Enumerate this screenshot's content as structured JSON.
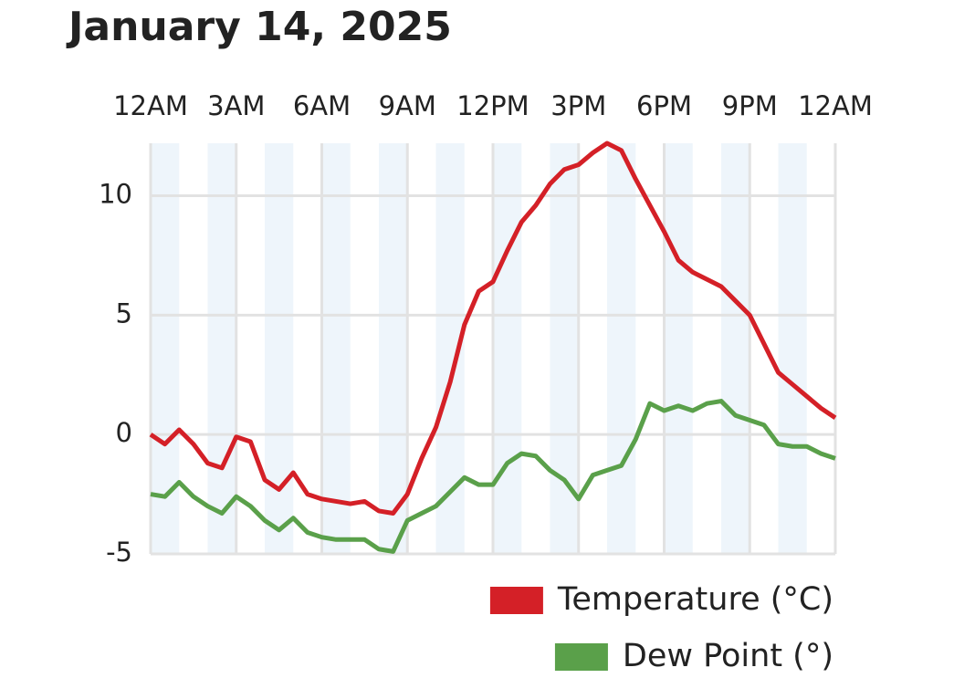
{
  "chart_data": {
    "type": "line",
    "title": "January 14, 2025",
    "x": [
      0,
      0.5,
      1,
      1.5,
      2,
      2.5,
      3,
      3.5,
      4,
      4.5,
      5,
      5.5,
      6,
      6.5,
      7,
      7.5,
      8,
      8.5,
      9,
      9.5,
      10,
      10.5,
      11,
      11.5,
      12,
      12.5,
      13,
      13.5,
      14,
      14.5,
      15,
      15.5,
      16,
      16.5,
      17,
      17.5,
      18,
      18.5,
      19,
      19.5,
      20,
      20.5,
      21,
      21.5,
      22,
      22.5,
      23,
      23.5,
      24
    ],
    "series": [
      {
        "name": "Temperature (°C)",
        "color": "#d42027",
        "values": [
          0,
          -0.4,
          0.2,
          -0.4,
          -1.2,
          -1.4,
          -0.1,
          -0.3,
          -1.9,
          -2.3,
          -1.6,
          -2.5,
          -2.7,
          -2.8,
          -2.9,
          -2.8,
          -3.2,
          -3.3,
          -2.5,
          -1.0,
          0.3,
          2.2,
          4.6,
          6.0,
          6.4,
          7.7,
          8.9,
          9.6,
          10.5,
          11.1,
          11.3,
          11.8,
          12.2,
          11.9,
          10.7,
          9.6,
          8.5,
          7.3,
          6.8,
          6.5,
          6.2,
          5.6,
          5.0,
          3.8,
          2.6,
          2.1,
          1.6,
          1.1,
          0.7
        ]
      },
      {
        "name": "Dew Point (°)",
        "color": "#5aa04a",
        "values": [
          -2.5,
          -2.6,
          -2.0,
          -2.6,
          -3.0,
          -3.3,
          -2.6,
          -3.0,
          -3.6,
          -4.0,
          -3.5,
          -4.1,
          -4.3,
          -4.4,
          -4.4,
          -4.4,
          -4.8,
          -4.9,
          -3.6,
          -3.3,
          -3.0,
          -2.4,
          -1.8,
          -2.1,
          -2.1,
          -1.2,
          -0.8,
          -0.9,
          -1.5,
          -1.9,
          -2.7,
          -1.7,
          -1.5,
          -1.3,
          -0.2,
          1.3,
          1.0,
          1.2,
          1.0,
          1.3,
          1.4,
          0.8,
          0.6,
          0.4,
          -0.4,
          -0.5,
          -0.5,
          -0.8,
          -1.0
        ]
      }
    ],
    "xlim": [
      0,
      24
    ],
    "xticks": [
      {
        "value": 0,
        "label": "12AM"
      },
      {
        "value": 3,
        "label": "3AM"
      },
      {
        "value": 6,
        "label": "6AM"
      },
      {
        "value": 9,
        "label": "9AM"
      },
      {
        "value": 12,
        "label": "12PM"
      },
      {
        "value": 15,
        "label": "3PM"
      },
      {
        "value": 18,
        "label": "6PM"
      },
      {
        "value": 21,
        "label": "9PM"
      },
      {
        "value": 24,
        "label": "12AM"
      }
    ],
    "ylim": [
      -5,
      12.2
    ],
    "yticks": [
      -5,
      0,
      5,
      10
    ],
    "grid": true
  }
}
